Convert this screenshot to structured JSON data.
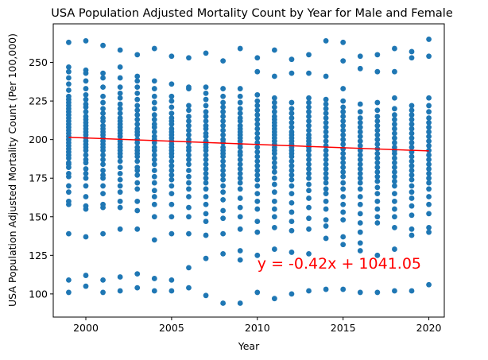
{
  "chart_data": {
    "type": "scatter",
    "title": "USA Population Adjusted Mortality Count by Year for Male and Female",
    "xlabel": "Year",
    "ylabel": "USA Population Adjusted Mortality Count (Per 100,000)",
    "xlim": [
      1998.1,
      2020.9
    ],
    "ylim": [
      85,
      275
    ],
    "xticks": [
      2000,
      2005,
      2010,
      2015,
      2020
    ],
    "yticks": [
      100,
      125,
      150,
      175,
      200,
      225,
      250
    ],
    "grid": false,
    "point_color": "#1f77b4",
    "regression": {
      "slope": -0.42,
      "intercept": 1041.05,
      "x_range": [
        1999,
        2020
      ],
      "color": "#ff0000",
      "equation_text": "y = -0.42x + 1041.05",
      "equation_position": [
        2010,
        120
      ]
    },
    "series": [
      {
        "x": 1999,
        "values": [
          101,
          109,
          139,
          158,
          160,
          166,
          170,
          176,
          178,
          182,
          184,
          185,
          188,
          190,
          192,
          194,
          196,
          198,
          200,
          202,
          204,
          206,
          208,
          210,
          212,
          214,
          216,
          218,
          220,
          222,
          224,
          226,
          228,
          232,
          236,
          240,
          244,
          247,
          263
        ]
      },
      {
        "x": 2000,
        "values": [
          105,
          112,
          137,
          155,
          157,
          163,
          170,
          175,
          178,
          181,
          185,
          187,
          190,
          193,
          195,
          197,
          199,
          201,
          203,
          205,
          207,
          209,
          211,
          213,
          215,
          218,
          221,
          223,
          226,
          229,
          233,
          238,
          243,
          245,
          264
        ]
      },
      {
        "x": 2001,
        "values": [
          101,
          109,
          139,
          156,
          158,
          165,
          170,
          175,
          177,
          180,
          184,
          187,
          190,
          193,
          195,
          197,
          199,
          201,
          203,
          205,
          207,
          209,
          212,
          214,
          217,
          220,
          224,
          228,
          234,
          240,
          243,
          261
        ]
      },
      {
        "x": 2002,
        "values": [
          102,
          111,
          142,
          156,
          160,
          166,
          170,
          174,
          178,
          182,
          186,
          189,
          191,
          193,
          195,
          197,
          199,
          202,
          204,
          206,
          208,
          210,
          212,
          214,
          217,
          220,
          223,
          227,
          230,
          234,
          240,
          247,
          258
        ]
      },
      {
        "x": 2003,
        "values": [
          104,
          113,
          142,
          154,
          160,
          168,
          172,
          177,
          180,
          182,
          186,
          189,
          191,
          193,
          195,
          198,
          200,
          203,
          205,
          207,
          210,
          213,
          216,
          219,
          222,
          226,
          230,
          234,
          238,
          241,
          255
        ]
      },
      {
        "x": 2004,
        "values": [
          102,
          110,
          135,
          150,
          158,
          163,
          167,
          172,
          176,
          180,
          184,
          187,
          190,
          193,
          195,
          198,
          200,
          202,
          205,
          208,
          210,
          213,
          216,
          220,
          224,
          228,
          233,
          238,
          259
        ]
      },
      {
        "x": 2005,
        "values": [
          102,
          109,
          139,
          150,
          158,
          165,
          170,
          174,
          177,
          180,
          183,
          186,
          189,
          191,
          193,
          195,
          197,
          199,
          201,
          203,
          205,
          207,
          210,
          212,
          214,
          217,
          221,
          225,
          228,
          236,
          254
        ]
      },
      {
        "x": 2006,
        "values": [
          104,
          117,
          139,
          150,
          156,
          163,
          168,
          172,
          176,
          180,
          184,
          187,
          190,
          193,
          195,
          198,
          200,
          203,
          206,
          209,
          212,
          215,
          219,
          222,
          233,
          234,
          253
        ]
      },
      {
        "x": 2007,
        "values": [
          99,
          123,
          138,
          147,
          152,
          158,
          163,
          168,
          172,
          175,
          178,
          181,
          184,
          187,
          190,
          193,
          195,
          197,
          199,
          202,
          204,
          207,
          209,
          212,
          215,
          218,
          222,
          226,
          230,
          234,
          256
        ]
      },
      {
        "x": 2008,
        "values": [
          94,
          126,
          139,
          149,
          154,
          161,
          166,
          170,
          174,
          177,
          180,
          183,
          186,
          189,
          191,
          193,
          195,
          198,
          200,
          203,
          206,
          209,
          212,
          215,
          218,
          221,
          224,
          228,
          233,
          251
        ]
      },
      {
        "x": 2009,
        "values": [
          94,
          122,
          128,
          142,
          150,
          156,
          162,
          168,
          172,
          175,
          178,
          181,
          184,
          187,
          190,
          192,
          195,
          197,
          199,
          201,
          203,
          205,
          207,
          209,
          212,
          214,
          217,
          220,
          224,
          228,
          233,
          259
        ]
      },
      {
        "x": 2010,
        "values": [
          101,
          125,
          140,
          147,
          155,
          160,
          165,
          170,
          174,
          177,
          180,
          183,
          186,
          189,
          192,
          195,
          198,
          201,
          204,
          207,
          210,
          213,
          216,
          219,
          222,
          225,
          229,
          244,
          253
        ]
      },
      {
        "x": 2011,
        "values": [
          97,
          129,
          143,
          150,
          155,
          160,
          166,
          171,
          175,
          179,
          182,
          185,
          188,
          191,
          193,
          195,
          197,
          199,
          201,
          203,
          205,
          207,
          209,
          211,
          213,
          215,
          218,
          221,
          224,
          227,
          241,
          258
        ]
      },
      {
        "x": 2012,
        "values": [
          100,
          127,
          141,
          147,
          153,
          159,
          165,
          170,
          174,
          177,
          180,
          183,
          186,
          189,
          191,
          193,
          195,
          197,
          199,
          201,
          203,
          205,
          208,
          211,
          214,
          217,
          220,
          224,
          243,
          252
        ]
      },
      {
        "x": 2013,
        "values": [
          102,
          126,
          142,
          149,
          156,
          162,
          167,
          171,
          175,
          178,
          181,
          184,
          187,
          190,
          193,
          195,
          197,
          199,
          201,
          203,
          206,
          209,
          212,
          215,
          218,
          221,
          224,
          227,
          243,
          255
        ]
      },
      {
        "x": 2014,
        "values": [
          103,
          136,
          144,
          148,
          155,
          160,
          165,
          168,
          172,
          175,
          178,
          181,
          184,
          187,
          190,
          193,
          196,
          199,
          202,
          205,
          208,
          211,
          214,
          217,
          220,
          223,
          226,
          241,
          264
        ]
      },
      {
        "x": 2015,
        "values": [
          103,
          132,
          137,
          148,
          153,
          158,
          163,
          168,
          172,
          176,
          179,
          182,
          185,
          188,
          191,
          194,
          197,
          200,
          203,
          206,
          209,
          212,
          215,
          218,
          221,
          225,
          233,
          251,
          263
        ]
      },
      {
        "x": 2016,
        "values": [
          101,
          128,
          133,
          140,
          146,
          152,
          158,
          163,
          168,
          172,
          175,
          178,
          181,
          184,
          187,
          190,
          193,
          196,
          199,
          202,
          205,
          208,
          211,
          214,
          218,
          223,
          246,
          254
        ]
      },
      {
        "x": 2017,
        "values": [
          101,
          125,
          146,
          150,
          155,
          160,
          165,
          169,
          173,
          176,
          179,
          182,
          185,
          188,
          191,
          194,
          197,
          200,
          203,
          206,
          209,
          212,
          215,
          219,
          224,
          244,
          255
        ]
      },
      {
        "x": 2018,
        "values": [
          102,
          129,
          143,
          150,
          155,
          160,
          165,
          170,
          173,
          176,
          179,
          182,
          185,
          188,
          191,
          193,
          195,
          198,
          201,
          204,
          207,
          210,
          213,
          216,
          220,
          227,
          244,
          259
        ]
      },
      {
        "x": 2019,
        "values": [
          102,
          138,
          142,
          151,
          157,
          162,
          166,
          170,
          174,
          177,
          180,
          183,
          186,
          189,
          192,
          195,
          198,
          201,
          204,
          207,
          210,
          213,
          216,
          219,
          222,
          253,
          257
        ]
      },
      {
        "x": 2020,
        "values": [
          106,
          140,
          143,
          152,
          158,
          163,
          168,
          172,
          175,
          178,
          181,
          184,
          187,
          190,
          193,
          196,
          199,
          202,
          205,
          208,
          211,
          214,
          218,
          222,
          227,
          254,
          265
        ]
      }
    ]
  }
}
